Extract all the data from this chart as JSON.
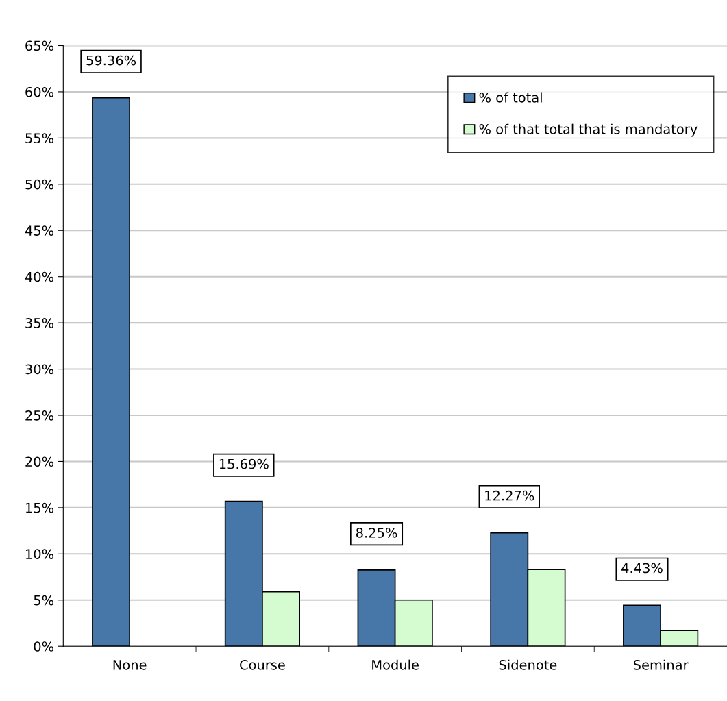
{
  "chart_data": {
    "type": "bar",
    "categories": [
      "None",
      "Course",
      "Module",
      "Sidenote",
      "Seminar"
    ],
    "series": [
      {
        "name": "% of total",
        "color": "#4677a8",
        "values": [
          59.36,
          15.69,
          8.25,
          12.27,
          4.43
        ],
        "value_labels": [
          "59.36%",
          "15.69%",
          "8.25%",
          "12.27%",
          "4.43%"
        ]
      },
      {
        "name": "% of that total that is mandatory",
        "color": "#d4fcd0",
        "values": [
          null,
          5.9,
          5.0,
          8.3,
          1.7
        ]
      }
    ],
    "ylim": [
      0,
      65
    ],
    "yticks": [
      {
        "value": 0,
        "label": "0%"
      },
      {
        "value": 5,
        "label": "5%"
      },
      {
        "value": 10,
        "label": "10%"
      },
      {
        "value": 15,
        "label": "15%"
      },
      {
        "value": 20,
        "label": "20%"
      },
      {
        "value": 25,
        "label": "25%"
      },
      {
        "value": 30,
        "label": "30%"
      },
      {
        "value": 35,
        "label": "35%"
      },
      {
        "value": 40,
        "label": "40%"
      },
      {
        "value": 45,
        "label": "45%"
      },
      {
        "value": 50,
        "label": "50%"
      },
      {
        "value": 55,
        "label": "55%"
      },
      {
        "value": 60,
        "label": "60%"
      },
      {
        "value": 65,
        "label": "65%"
      }
    ],
    "grid": "y",
    "legend": "top right"
  }
}
